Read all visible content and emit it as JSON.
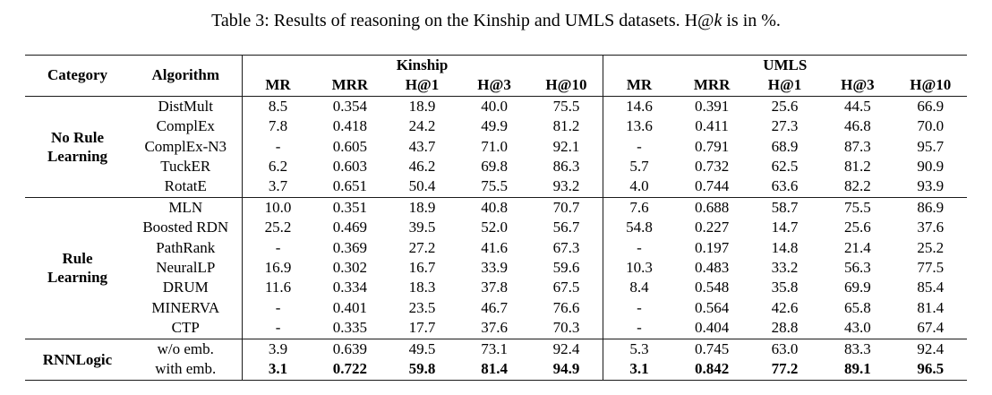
{
  "caption": {
    "prefix": "Table 3: Results of reasoning on the Kinship and UMLS datasets. H@",
    "math_k": "k",
    "suffix": " is in %."
  },
  "table": {
    "headers": {
      "category": "Category",
      "algorithm": "Algorithm"
    },
    "groups": [
      {
        "label": "Kinship",
        "metrics": [
          "MR",
          "MRR",
          "H@1",
          "H@3",
          "H@10"
        ]
      },
      {
        "label": "UMLS",
        "metrics": [
          "MR",
          "MRR",
          "H@1",
          "H@3",
          "H@10"
        ]
      }
    ],
    "sections": [
      {
        "category": "No Rule Learning",
        "rows": [
          {
            "algorithm": "DistMult",
            "values": [
              "8.5",
              "0.354",
              "18.9",
              "40.0",
              "75.5",
              "14.6",
              "0.391",
              "25.6",
              "44.5",
              "66.9"
            ]
          },
          {
            "algorithm": "ComplEx",
            "values": [
              "7.8",
              "0.418",
              "24.2",
              "49.9",
              "81.2",
              "13.6",
              "0.411",
              "27.3",
              "46.8",
              "70.0"
            ]
          },
          {
            "algorithm": "ComplEx-N3",
            "values": [
              "-",
              "0.605",
              "43.7",
              "71.0",
              "92.1",
              "-",
              "0.791",
              "68.9",
              "87.3",
              "95.7"
            ]
          },
          {
            "algorithm": "TuckER",
            "values": [
              "6.2",
              "0.603",
              "46.2",
              "69.8",
              "86.3",
              "5.7",
              "0.732",
              "62.5",
              "81.2",
              "90.9"
            ]
          },
          {
            "algorithm": "RotatE",
            "values": [
              "3.7",
              "0.651",
              "50.4",
              "75.5",
              "93.2",
              "4.0",
              "0.744",
              "63.6",
              "82.2",
              "93.9"
            ]
          }
        ]
      },
      {
        "category": "Rule Learning",
        "rows": [
          {
            "algorithm": "MLN",
            "values": [
              "10.0",
              "0.351",
              "18.9",
              "40.8",
              "70.7",
              "7.6",
              "0.688",
              "58.7",
              "75.5",
              "86.9"
            ]
          },
          {
            "algorithm": "Boosted RDN",
            "values": [
              "25.2",
              "0.469",
              "39.5",
              "52.0",
              "56.7",
              "54.8",
              "0.227",
              "14.7",
              "25.6",
              "37.6"
            ]
          },
          {
            "algorithm": "PathRank",
            "values": [
              "-",
              "0.369",
              "27.2",
              "41.6",
              "67.3",
              "-",
              "0.197",
              "14.8",
              "21.4",
              "25.2"
            ]
          },
          {
            "algorithm": "NeuralLP",
            "values": [
              "16.9",
              "0.302",
              "16.7",
              "33.9",
              "59.6",
              "10.3",
              "0.483",
              "33.2",
              "56.3",
              "77.5"
            ]
          },
          {
            "algorithm": "DRUM",
            "values": [
              "11.6",
              "0.334",
              "18.3",
              "37.8",
              "67.5",
              "8.4",
              "0.548",
              "35.8",
              "69.9",
              "85.4"
            ]
          },
          {
            "algorithm": "MINERVA",
            "values": [
              "-",
              "0.401",
              "23.5",
              "46.7",
              "76.6",
              "-",
              "0.564",
              "42.6",
              "65.8",
              "81.4"
            ]
          },
          {
            "algorithm": "CTP",
            "values": [
              "-",
              "0.335",
              "17.7",
              "37.6",
              "70.3",
              "-",
              "0.404",
              "28.8",
              "43.0",
              "67.4"
            ]
          }
        ]
      },
      {
        "category": "RNNLogic",
        "rows": [
          {
            "algorithm": "w/o emb.",
            "values": [
              "3.9",
              "0.639",
              "49.5",
              "73.1",
              "92.4",
              "5.3",
              "0.745",
              "63.0",
              "83.3",
              "92.4"
            ]
          },
          {
            "algorithm": "with emb.",
            "values": [
              "3.1",
              "0.722",
              "59.8",
              "81.4",
              "94.9",
              "3.1",
              "0.842",
              "77.2",
              "89.1",
              "96.5"
            ],
            "bold": true
          }
        ]
      }
    ]
  }
}
